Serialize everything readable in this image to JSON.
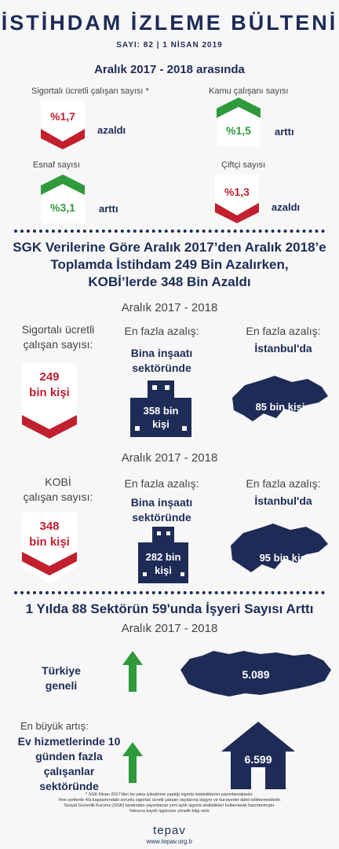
{
  "header": {
    "title": "İSTİHDAM İZLEME BÜLTENİ",
    "issue": "SAYI: 82 | 1 NİSAN 2019"
  },
  "section1": {
    "heading": "Aralık 2017 - 2018 arasında",
    "items": [
      {
        "label": "Sigortalı ücretli çalışan sayısı *",
        "value": "%1,7",
        "trend": "azaldı",
        "direction": "down"
      },
      {
        "label": "Kamu çalışanı sayısı",
        "value": "%1,5",
        "trend": "arttı",
        "direction": "up"
      },
      {
        "label": "Esnaf sayısı",
        "value": "%3,1",
        "trend": "arttı",
        "direction": "up"
      },
      {
        "label": "Çiftçi sayısı",
        "value": "%1,3",
        "trend": "azaldı",
        "direction": "down"
      }
    ]
  },
  "section2": {
    "heading_lines": [
      "SGK Verilerine Göre Aralık 2017’den Aralık 2018’e",
      "Toplamda İstihdam 249 Bin Azalırken,",
      "KOBİ’lerde 348 Bin Azaldı"
    ],
    "period_a": "Aralık 2017 - 2018",
    "row_a": {
      "left_label": [
        "Sigortalı ücretli",
        "çalışan sayısı:"
      ],
      "left_value": [
        "249",
        "bin kişi"
      ],
      "mid_label": "En fazla azalış:",
      "mid_bold": [
        "Bina inşaatı",
        "sektöründe"
      ],
      "mid_value": [
        "358 bin",
        "kişi"
      ],
      "right_label": "En fazla azalış:",
      "right_bold": "İstanbul'da",
      "right_value": "85 bin kişi"
    },
    "period_b": "Aralık 2017 - 2018",
    "row_b": {
      "left_label": [
        "KOBİ",
        "çalışan sayısı:"
      ],
      "left_value": [
        "348",
        "bin kişi"
      ],
      "mid_label": "En fazla azalış:",
      "mid_bold": [
        "Bina inşaatı",
        "sektöründe"
      ],
      "mid_value": [
        "282 bin",
        "kişi"
      ],
      "right_label": "En fazla azalış:",
      "right_bold": "İstanbul'da",
      "right_value": "95 bin kişi"
    }
  },
  "section3": {
    "heading": "1 Yılda 88 Sektörün 59'unda İşyeri Sayısı Arttı",
    "period": "Aralık 2017 - 2018",
    "turkey_label": [
      "Türkiye",
      "geneli"
    ],
    "turkey_value": "5.089",
    "sector_prefix": "En büyük artış:",
    "sector_bold": [
      "Ev hizmetlerinde 10",
      "günden fazla",
      "çalışanlar",
      "sektöründe"
    ],
    "sector_value": "6.599"
  },
  "footnotes": [
    "* SGK Nisan 2017’den bu yana iyileştirme yaptığı sigorta istatistiklerini yayımlamaktadır.",
    "Yeni serilerde 4/a kapsamındaki zorunlu sigortalı ücretli çalışan sayılarına stajyer ve kursiyerler dahil edilmemektedir.",
    "Sosyal Güvenlik Kurumu (SGK) tarafından yayımlanan yeni aylık sigorta istatistikleri kullanılarak hazırlanmıştır.",
    "Yalnızca kayıtlı işgücüne yönelik bilgi verir."
  ],
  "brand": {
    "name": "tepav",
    "url": "www.tepav.org.tr"
  },
  "colors": {
    "navy": "#1e2b57",
    "red": "#c2202f",
    "green": "#2f9a3c"
  }
}
